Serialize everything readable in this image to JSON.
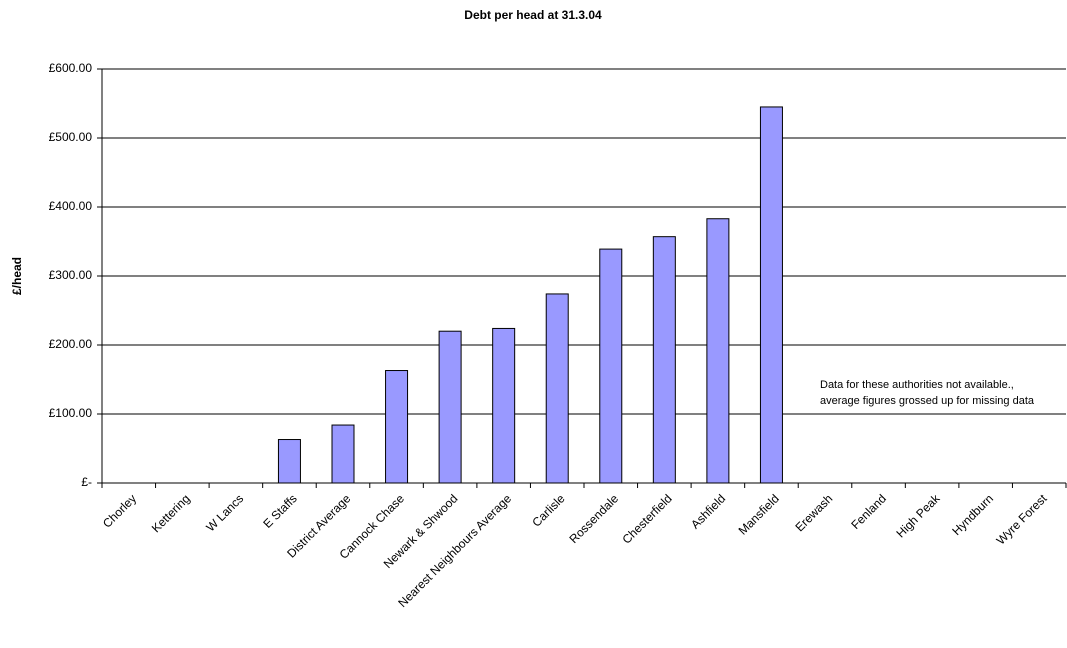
{
  "chart_data": {
    "type": "bar",
    "title": "Debt per head at 31.3.04",
    "y_label": "£/head",
    "categories": [
      "Chorley",
      "Kettering",
      "W Lancs",
      "E Staffs",
      "District Average",
      "Cannock Chase",
      "Newark & Shwood",
      "Nearest Neighbours Average",
      "Carlisle",
      "Rossendale",
      "Chesterfield",
      "Ashfield",
      "Mansfield",
      "Erewash",
      "Fenland",
      "High Peak",
      "Hyndburn",
      "Wyre Forest"
    ],
    "values": [
      0,
      0,
      0,
      63,
      84,
      163,
      220,
      224,
      274,
      339,
      357,
      383,
      545,
      null,
      null,
      null,
      null,
      null
    ],
    "color": "#9999ff",
    "ylim": [
      0,
      600
    ],
    "yticks": [
      {
        "value": 0,
        "label": "£-"
      },
      {
        "value": 100,
        "label": "£100.00"
      },
      {
        "value": 200,
        "label": "£200.00"
      },
      {
        "value": 300,
        "label": "£300.00"
      },
      {
        "value": 400,
        "label": "£400.00"
      },
      {
        "value": 500,
        "label": "£500.00"
      },
      {
        "value": 600,
        "label": "£600.00"
      }
    ],
    "grid": true,
    "annotations": [
      "Data for these authorities not available.,",
      "average figures grossed up for missing data"
    ]
  }
}
